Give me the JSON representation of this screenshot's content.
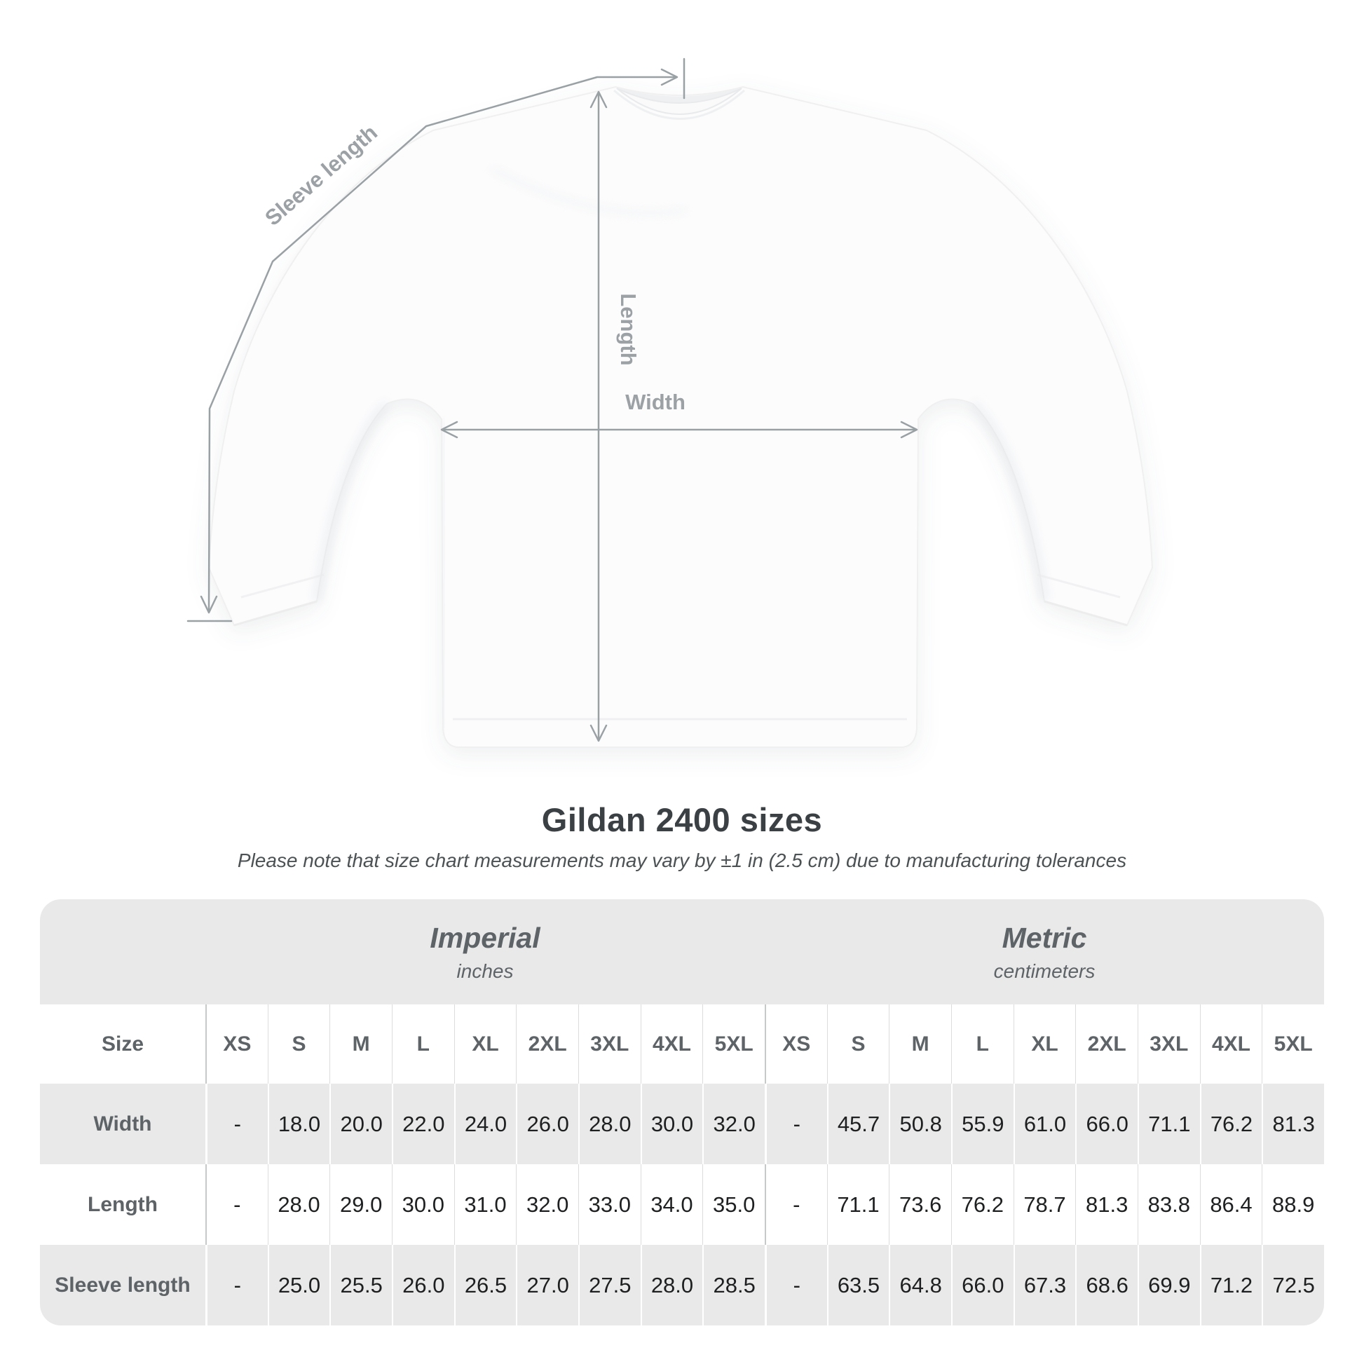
{
  "page": {
    "background": "#ffffff"
  },
  "diagram": {
    "sleeve_label": "Sleeve length",
    "length_label": "Length",
    "width_label": "Width",
    "line_color": "#9aa1a4",
    "label_color": "#9ba1a4"
  },
  "heading": {
    "title": "Gildan 2400 sizes",
    "subtitle": "Please note that size chart measurements may vary by ±1 in (2.5 cm) due to manufacturing tolerances"
  },
  "table": {
    "stripe_color": "#e9e9e9",
    "size_header": "Size",
    "groups": [
      {
        "label": "Imperial",
        "sublabel": "inches"
      },
      {
        "label": "Metric",
        "sublabel": "centimeters"
      }
    ],
    "sizes": [
      "XS",
      "S",
      "M",
      "L",
      "XL",
      "2XL",
      "3XL",
      "4XL",
      "5XL"
    ],
    "rows": [
      {
        "label": "Width",
        "imperial": [
          "-",
          "18.0",
          "20.0",
          "22.0",
          "24.0",
          "26.0",
          "28.0",
          "30.0",
          "32.0"
        ],
        "metric": [
          "-",
          "45.7",
          "50.8",
          "55.9",
          "61.0",
          "66.0",
          "71.1",
          "76.2",
          "81.3"
        ]
      },
      {
        "label": "Length",
        "imperial": [
          "-",
          "28.0",
          "29.0",
          "30.0",
          "31.0",
          "32.0",
          "33.0",
          "34.0",
          "35.0"
        ],
        "metric": [
          "-",
          "71.1",
          "73.6",
          "76.2",
          "78.7",
          "81.3",
          "83.8",
          "86.4",
          "88.9"
        ]
      },
      {
        "label": "Sleeve length",
        "imperial": [
          "-",
          "25.0",
          "25.5",
          "26.0",
          "26.5",
          "27.0",
          "27.5",
          "28.0",
          "28.5"
        ],
        "metric": [
          "-",
          "63.5",
          "64.8",
          "66.0",
          "67.3",
          "68.6",
          "69.9",
          "71.2",
          "72.5"
        ]
      }
    ]
  },
  "chart_data": {
    "type": "table",
    "title": "Gildan 2400 sizes",
    "columns": [
      "XS",
      "S",
      "M",
      "L",
      "XL",
      "2XL",
      "3XL",
      "4XL",
      "5XL"
    ],
    "units": {
      "imperial": "inches",
      "metric": "centimeters"
    },
    "rows": [
      {
        "measurement": "Width",
        "imperial": [
          null,
          18.0,
          20.0,
          22.0,
          24.0,
          26.0,
          28.0,
          30.0,
          32.0
        ],
        "metric": [
          null,
          45.7,
          50.8,
          55.9,
          61.0,
          66.0,
          71.1,
          76.2,
          81.3
        ]
      },
      {
        "measurement": "Length",
        "imperial": [
          null,
          28.0,
          29.0,
          30.0,
          31.0,
          32.0,
          33.0,
          34.0,
          35.0
        ],
        "metric": [
          null,
          71.1,
          73.6,
          76.2,
          78.7,
          81.3,
          83.8,
          86.4,
          88.9
        ]
      },
      {
        "measurement": "Sleeve length",
        "imperial": [
          null,
          25.0,
          25.5,
          26.0,
          26.5,
          27.0,
          27.5,
          28.0,
          28.5
        ],
        "metric": [
          null,
          63.5,
          64.8,
          66.0,
          67.3,
          68.6,
          69.9,
          71.2,
          72.5
        ]
      }
    ]
  }
}
